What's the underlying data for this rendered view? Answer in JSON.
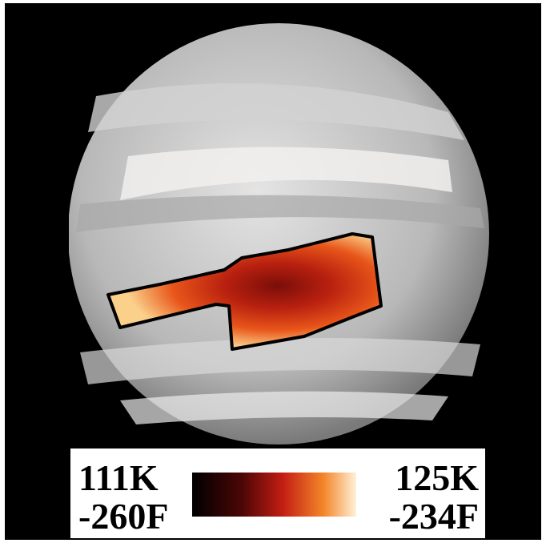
{
  "legend": {
    "low_kelvin": "111K",
    "low_fahrenheit": "-260F",
    "high_kelvin": "125K",
    "high_fahrenheit": "-234F"
  }
}
